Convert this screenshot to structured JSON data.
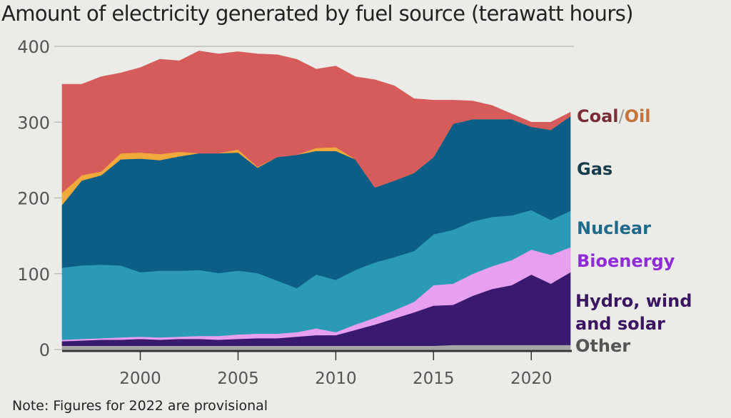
{
  "chart_data": {
    "type": "area",
    "stacked": true,
    "title": "Amount of electricity generated by fuel source (terawatt hours)",
    "note": "Note: Figures for 2022 are provisional",
    "xlabel": "",
    "ylabel": "",
    "ylim": [
      0,
      400
    ],
    "xlim": [
      1996,
      2022
    ],
    "yticks": [
      0,
      100,
      200,
      300,
      400
    ],
    "ytick_labels": [
      "0",
      "100",
      "200",
      "300",
      "400"
    ],
    "xticks": [
      2000,
      2005,
      2010,
      2015,
      2020
    ],
    "xtick_labels": [
      "2000",
      "2005",
      "2010",
      "2015",
      "2020"
    ],
    "grid": "horizontal at 400 only",
    "legend_placement": "right (inline labels)",
    "x": [
      1996,
      1997,
      1998,
      1999,
      2000,
      2001,
      2002,
      2003,
      2004,
      2005,
      2006,
      2007,
      2008,
      2009,
      2010,
      2011,
      2012,
      2013,
      2014,
      2015,
      2016,
      2017,
      2018,
      2019,
      2020,
      2021,
      2022
    ],
    "series": [
      {
        "name": "Other",
        "color": "#a6a6a6",
        "values": [
          5,
          5,
          5,
          5,
          5,
          5,
          5,
          5,
          5,
          5,
          5,
          5,
          5,
          5,
          5,
          5,
          5,
          5,
          5,
          5,
          6,
          6,
          6,
          6,
          6,
          6,
          6
        ]
      },
      {
        "name": "Hydro, wind and solar",
        "color": "#3a1a6e",
        "values": [
          6,
          7,
          8,
          8,
          9,
          8,
          9,
          9,
          8,
          9,
          10,
          10,
          12,
          14,
          14,
          21,
          28,
          36,
          44,
          53,
          53,
          65,
          74,
          79,
          93,
          81,
          96
        ]
      },
      {
        "name": "Bioenergy",
        "color": "#e6a0ee",
        "values": [
          2,
          2,
          2,
          3,
          3,
          3,
          3,
          4,
          5,
          6,
          6,
          6,
          6,
          9,
          4,
          7,
          9,
          11,
          14,
          27,
          28,
          29,
          30,
          33,
          33,
          38,
          33
        ]
      },
      {
        "name": "Nuclear",
        "color": "#2b9bb5",
        "values": [
          95,
          97,
          97,
          95,
          85,
          88,
          87,
          87,
          83,
          84,
          80,
          70,
          58,
          71,
          69,
          72,
          73,
          70,
          67,
          67,
          71,
          69,
          65,
          59,
          52,
          46,
          48
        ]
      },
      {
        "name": "Gas",
        "color": "#0d5e86",
        "values": [
          83,
          112,
          118,
          140,
          150,
          146,
          151,
          154,
          158,
          156,
          139,
          163,
          176,
          163,
          170,
          146,
          99,
          101,
          103,
          102,
          140,
          135,
          129,
          127,
          110,
          119,
          125
        ]
      },
      {
        "name": "Oil",
        "color": "#f2a93b",
        "values": [
          16,
          7,
          5,
          8,
          8,
          8,
          6,
          0,
          0,
          4,
          1,
          0,
          0,
          4,
          5,
          0,
          0,
          0,
          0,
          0,
          0,
          0,
          0,
          0,
          0,
          0,
          0
        ]
      },
      {
        "name": "Coal",
        "color": "#d65c5c",
        "values": [
          143,
          120,
          125,
          106,
          112,
          125,
          120,
          135,
          131,
          129,
          149,
          135,
          126,
          104,
          107,
          109,
          142,
          125,
          98,
          75,
          31,
          24,
          18,
          7,
          6,
          10,
          5
        ]
      }
    ]
  },
  "legend": {
    "coal": "Coal",
    "slash": "/",
    "oil": "Oil",
    "gas": "Gas",
    "nuclear": "Nuclear",
    "bioenergy": "Bioenergy",
    "hydro_line1": "Hydro, wind",
    "hydro_line2": "and solar",
    "other": "Other"
  },
  "legend_colors": {
    "coal": "#7a2d34",
    "slash": "#9a9a9a",
    "oil": "#c4743a",
    "gas": "#173c4e",
    "nuclear": "#1f6a8a",
    "bioenergy": "#8f2bd8",
    "hydro": "#3b1660",
    "other": "#555555"
  }
}
